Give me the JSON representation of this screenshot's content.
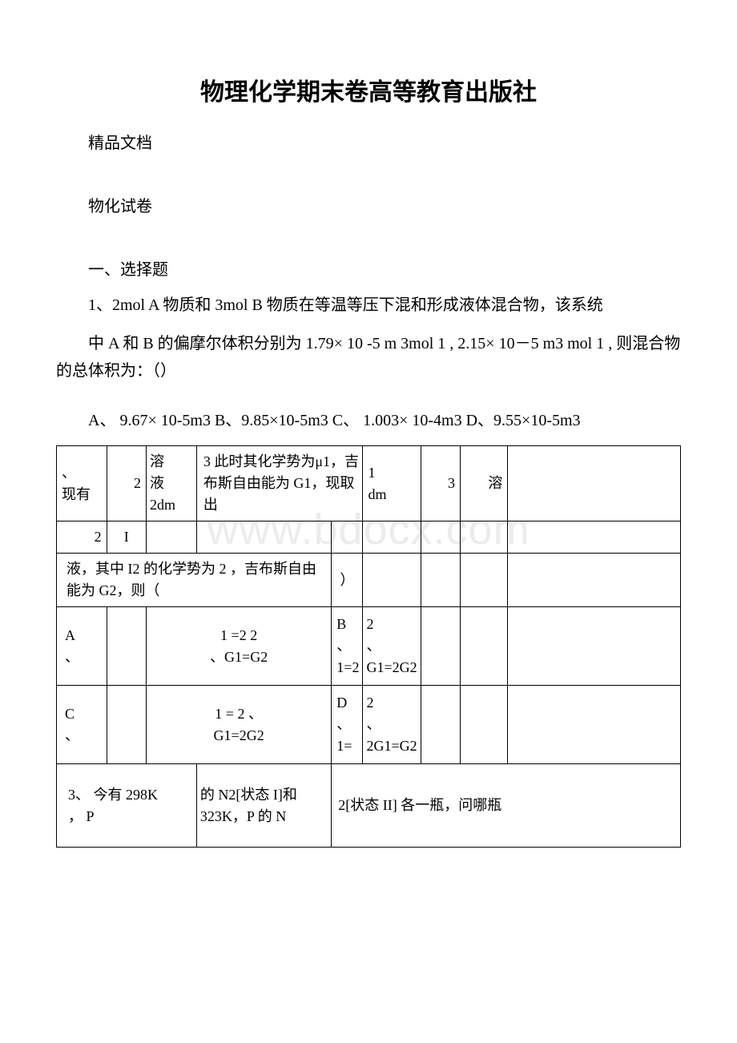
{
  "colors": {
    "text": "#000000",
    "background": "#ffffff",
    "watermark": "#ececec",
    "border": "#000000"
  },
  "typography": {
    "title_fontsize": 30,
    "body_fontsize": 20,
    "table_fontsize": 18,
    "watermark_fontsize": 54,
    "title_font": "SimHei",
    "body_font": "SimSun"
  },
  "title": "物理化学期末卷高等教育出版社",
  "subtitle": "精品文档",
  "section_label": "物化试卷",
  "section_heading": "一、选择题",
  "q1_line1": "1、2mol A 物质和 3mol B 物质在等温等压下混和形成液体混合物，该系统",
  "q1_line2": "中 A 和 B 的偏摩尔体积分别为 1.79× 10 -5 m 3mol 1 , 2.15× 10－5 m3 mol 1 , 则混合物的总体积为：（）",
  "q1_answers": "A、 9.67× 10-5m3  B、9.85×10-5m3  C、 1.003× 10-4m3  D、9.55×10-5m3",
  "watermark": "www.bdocx.com",
  "table": {
    "row1": {
      "c1": "、\n现有",
      "c2": "2",
      "c3": "溶\n液\n2dm",
      "c4": "3 此时其化学势为μ1，吉布斯自由能为 G1，现取出",
      "c5": "1\ndm",
      "c6": "3",
      "c7": "溶",
      "c8": ""
    },
    "row2": {
      "c1": "2",
      "c2": "I"
    },
    "row3": {
      "c1": "液，其中 I2 的化学势为 2 ，吉布斯自由能为 G2，则（",
      "c2": "）"
    },
    "row4": {
      "c1": "A\n、",
      "c2": "",
      "c3": "1 =2 2\n、G1=G2",
      "c4": "B\n、\n1=2",
      "c5": "2\n、G1=2G2"
    },
    "row5": {
      "c1": "C\n、",
      "c2": "",
      "c3": "1 = 2 、\nG1=2G2",
      "c4": "D\n、 1=",
      "c5": "2\n、2G1=G2"
    },
    "row6": {
      "c1": "3、 今有 298K\n，  P",
      "c2": "的 N2[状态 I]和 323K，P 的 N",
      "c3": "2[状态 II] 各一瓶，问哪瓶"
    }
  }
}
